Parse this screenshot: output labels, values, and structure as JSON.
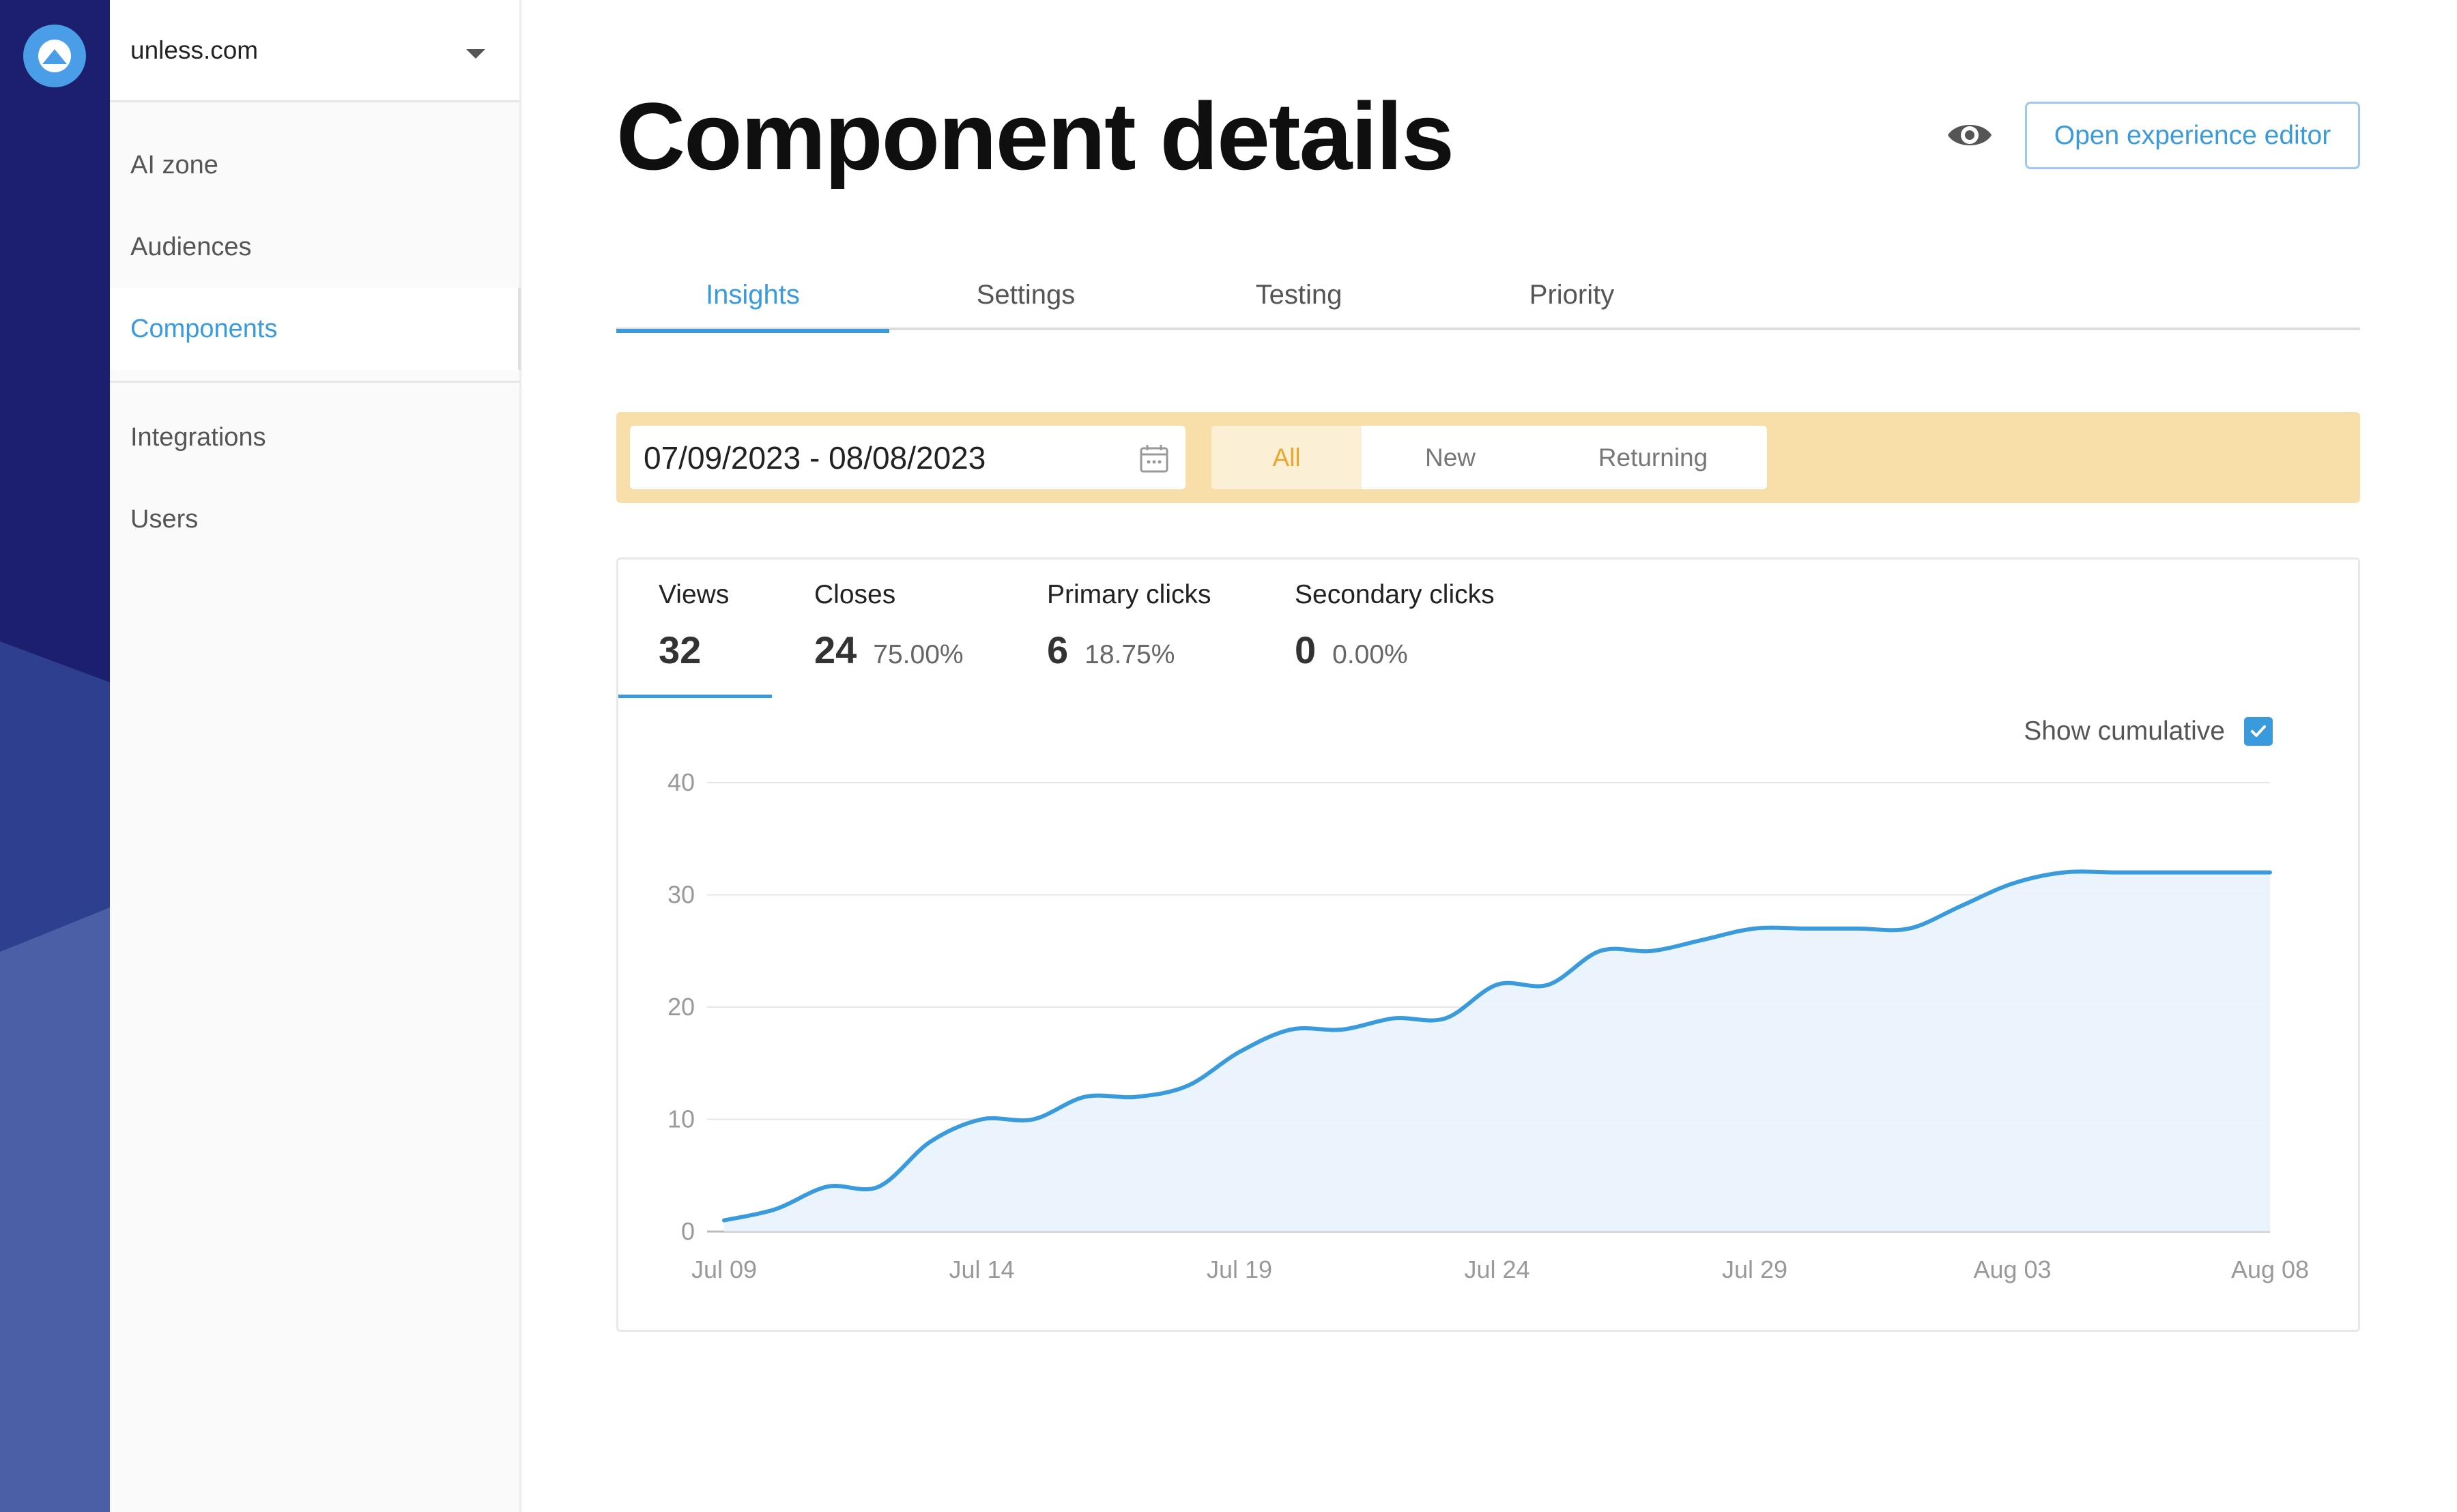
{
  "sidebar": {
    "site": "unless.com",
    "nav_primary": [
      "AI zone",
      "Audiences",
      "Components"
    ],
    "nav_secondary": [
      "Integrations",
      "Users"
    ],
    "active": "Components"
  },
  "header": {
    "title": "Component details",
    "editor_button": "Open experience editor"
  },
  "tabs": [
    "Insights",
    "Settings",
    "Testing",
    "Priority"
  ],
  "active_tab": "Insights",
  "filters": {
    "date_range": "07/09/2023 - 08/08/2023",
    "segments": [
      "All",
      "New",
      "Returning"
    ],
    "active_segment": "All"
  },
  "metrics": [
    {
      "label": "Views",
      "value": "32",
      "pct": ""
    },
    {
      "label": "Closes",
      "value": "24",
      "pct": "75.00%"
    },
    {
      "label": "Primary clicks",
      "value": "6",
      "pct": "18.75%"
    },
    {
      "label": "Secondary clicks",
      "value": "0",
      "pct": "0.00%"
    }
  ],
  "show_cumulative": {
    "label": "Show cumulative",
    "checked": true
  },
  "colors": {
    "accent": "#3a9bdc",
    "filter_bar": "#f8dfa9",
    "segment_active_text": "#e8a72a",
    "rail": "#1b1f6e"
  },
  "chart_data": {
    "type": "area",
    "x": [
      "Jul 09",
      "Jul 10",
      "Jul 11",
      "Jul 12",
      "Jul 13",
      "Jul 14",
      "Jul 15",
      "Jul 16",
      "Jul 17",
      "Jul 18",
      "Jul 19",
      "Jul 20",
      "Jul 21",
      "Jul 22",
      "Jul 23",
      "Jul 24",
      "Jul 25",
      "Jul 26",
      "Jul 27",
      "Jul 28",
      "Jul 29",
      "Jul 30",
      "Jul 31",
      "Aug 01",
      "Aug 02",
      "Aug 03",
      "Aug 04",
      "Aug 05",
      "Aug 06",
      "Aug 07",
      "Aug 08"
    ],
    "x_ticks": [
      "Jul 09",
      "Jul 14",
      "Jul 19",
      "Jul 24",
      "Jul 29",
      "Aug 03",
      "Aug 08"
    ],
    "series": [
      {
        "values": [
          1,
          2,
          4,
          4,
          8,
          10,
          10,
          12,
          12,
          13,
          16,
          18,
          18,
          19,
          19,
          22,
          22,
          25,
          25,
          26,
          27,
          27,
          27,
          27,
          29,
          31,
          32,
          32,
          32,
          32,
          32
        ]
      }
    ],
    "ylim": [
      0,
      40
    ],
    "y_ticks": [
      0,
      10,
      20,
      30,
      40
    ],
    "grid": true
  }
}
